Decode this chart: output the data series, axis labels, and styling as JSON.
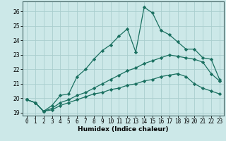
{
  "xlabel": "Humidex (Indice chaleur)",
  "bg_color": "#cce8e8",
  "grid_color": "#aacece",
  "line_color": "#1a7060",
  "xlim": [
    -0.5,
    23.5
  ],
  "ylim": [
    18.8,
    26.7
  ],
  "yticks": [
    19,
    20,
    21,
    22,
    23,
    24,
    25,
    26
  ],
  "xticks": [
    0,
    1,
    2,
    3,
    4,
    5,
    6,
    7,
    8,
    9,
    10,
    11,
    12,
    13,
    14,
    15,
    16,
    17,
    18,
    19,
    20,
    21,
    22,
    23
  ],
  "line1_x": [
    0,
    1,
    2,
    3,
    4,
    5,
    6,
    7,
    8,
    9,
    10,
    11,
    12,
    13,
    14,
    15,
    16,
    17,
    18,
    19,
    20,
    21,
    22,
    23
  ],
  "line1_y": [
    19.9,
    19.7,
    19.1,
    19.5,
    20.2,
    20.3,
    21.5,
    22.0,
    22.7,
    23.3,
    23.7,
    24.3,
    24.8,
    23.2,
    26.3,
    25.9,
    24.7,
    24.4,
    23.9,
    23.4,
    23.4,
    22.8,
    22.7,
    21.3
  ],
  "line2_x": [
    0,
    1,
    2,
    3,
    4,
    5,
    6,
    7,
    8,
    9,
    10,
    11,
    12,
    13,
    14,
    15,
    16,
    17,
    18,
    19,
    20,
    21,
    22,
    23
  ],
  "line2_y": [
    19.9,
    19.7,
    19.1,
    19.3,
    19.7,
    19.9,
    20.2,
    20.4,
    20.7,
    21.0,
    21.3,
    21.6,
    21.9,
    22.1,
    22.4,
    22.6,
    22.8,
    23.0,
    22.9,
    22.8,
    22.7,
    22.5,
    21.7,
    21.2
  ],
  "line3_x": [
    0,
    1,
    2,
    3,
    4,
    5,
    6,
    7,
    8,
    9,
    10,
    11,
    12,
    13,
    14,
    15,
    16,
    17,
    18,
    19,
    20,
    21,
    22,
    23
  ],
  "line3_y": [
    19.9,
    19.7,
    19.1,
    19.2,
    19.5,
    19.7,
    19.9,
    20.1,
    20.3,
    20.4,
    20.6,
    20.7,
    20.9,
    21.0,
    21.2,
    21.3,
    21.5,
    21.6,
    21.7,
    21.5,
    21.0,
    20.7,
    20.5,
    20.3
  ]
}
